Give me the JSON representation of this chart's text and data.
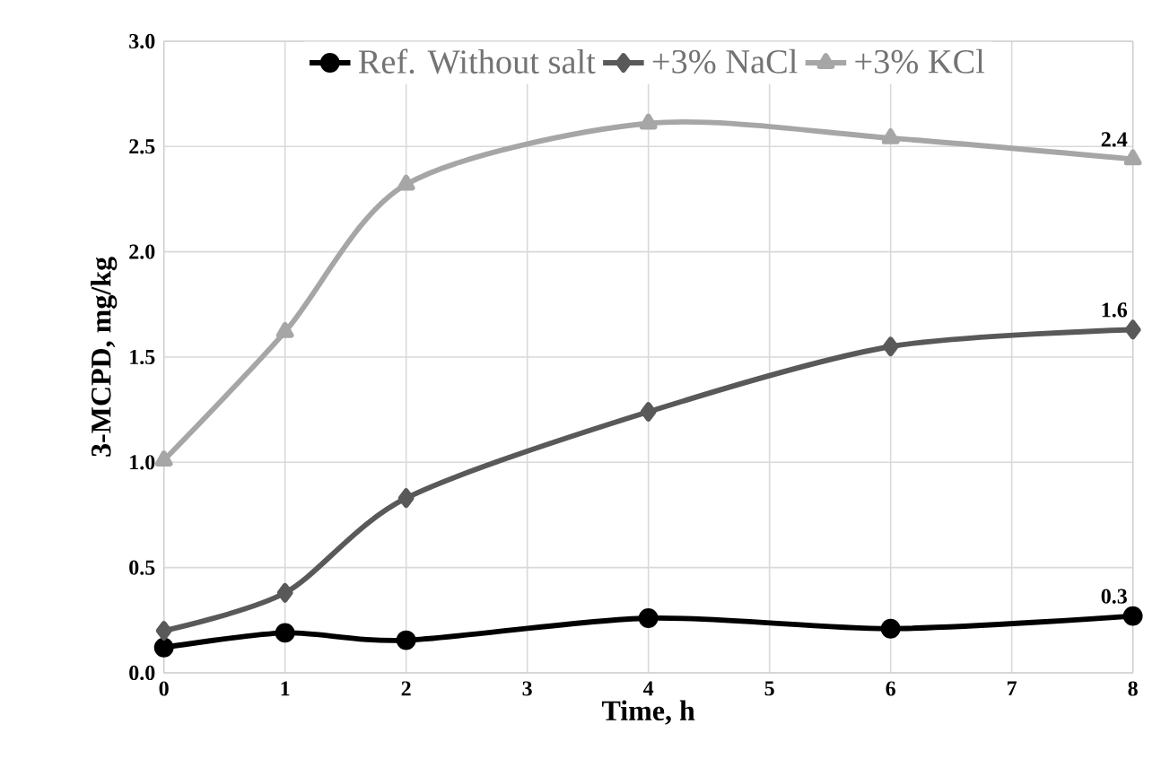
{
  "chart_data": {
    "type": "line",
    "xlabel": "Time, h",
    "ylabel": "3-MCPD, mg/kg",
    "x": [
      0,
      1,
      2,
      4,
      6,
      8
    ],
    "series": [
      {
        "name": "Ref. Without salt",
        "color": "#000000",
        "marker": "circle",
        "values": [
          0.12,
          0.19,
          0.155,
          0.26,
          0.21,
          0.27
        ],
        "value_labels": [
          null,
          null,
          null,
          null,
          null,
          "0.3"
        ]
      },
      {
        "name": "+3% NaCl",
        "color": "#595959",
        "marker": "diamond",
        "values": [
          0.2,
          0.38,
          0.83,
          1.24,
          1.55,
          1.63
        ],
        "value_labels": [
          null,
          null,
          null,
          null,
          null,
          "1.6"
        ]
      },
      {
        "name": "+3% KCl",
        "color": "#a6a6a6",
        "marker": "triangle",
        "values": [
          1.01,
          1.62,
          2.32,
          2.61,
          2.54,
          2.44
        ],
        "value_labels": [
          null,
          null,
          null,
          null,
          null,
          "2.4"
        ]
      }
    ],
    "xlim": [
      0,
      8
    ],
    "xticks": [
      0,
      1,
      2,
      3,
      4,
      5,
      6,
      7,
      8
    ],
    "ylim": [
      0,
      3
    ],
    "yticks": [
      {
        "value": 0,
        "label": "0.0"
      },
      {
        "value": 0.5,
        "label": "0.5"
      },
      {
        "value": 1,
        "label": "1.0"
      },
      {
        "value": 1.5,
        "label": "1.5"
      },
      {
        "value": 2,
        "label": "2.0"
      },
      {
        "value": 2.5,
        "label": "2.5"
      },
      {
        "value": 3,
        "label": "3.0"
      }
    ],
    "grid": true,
    "legend": "top",
    "line_style": "solid"
  }
}
